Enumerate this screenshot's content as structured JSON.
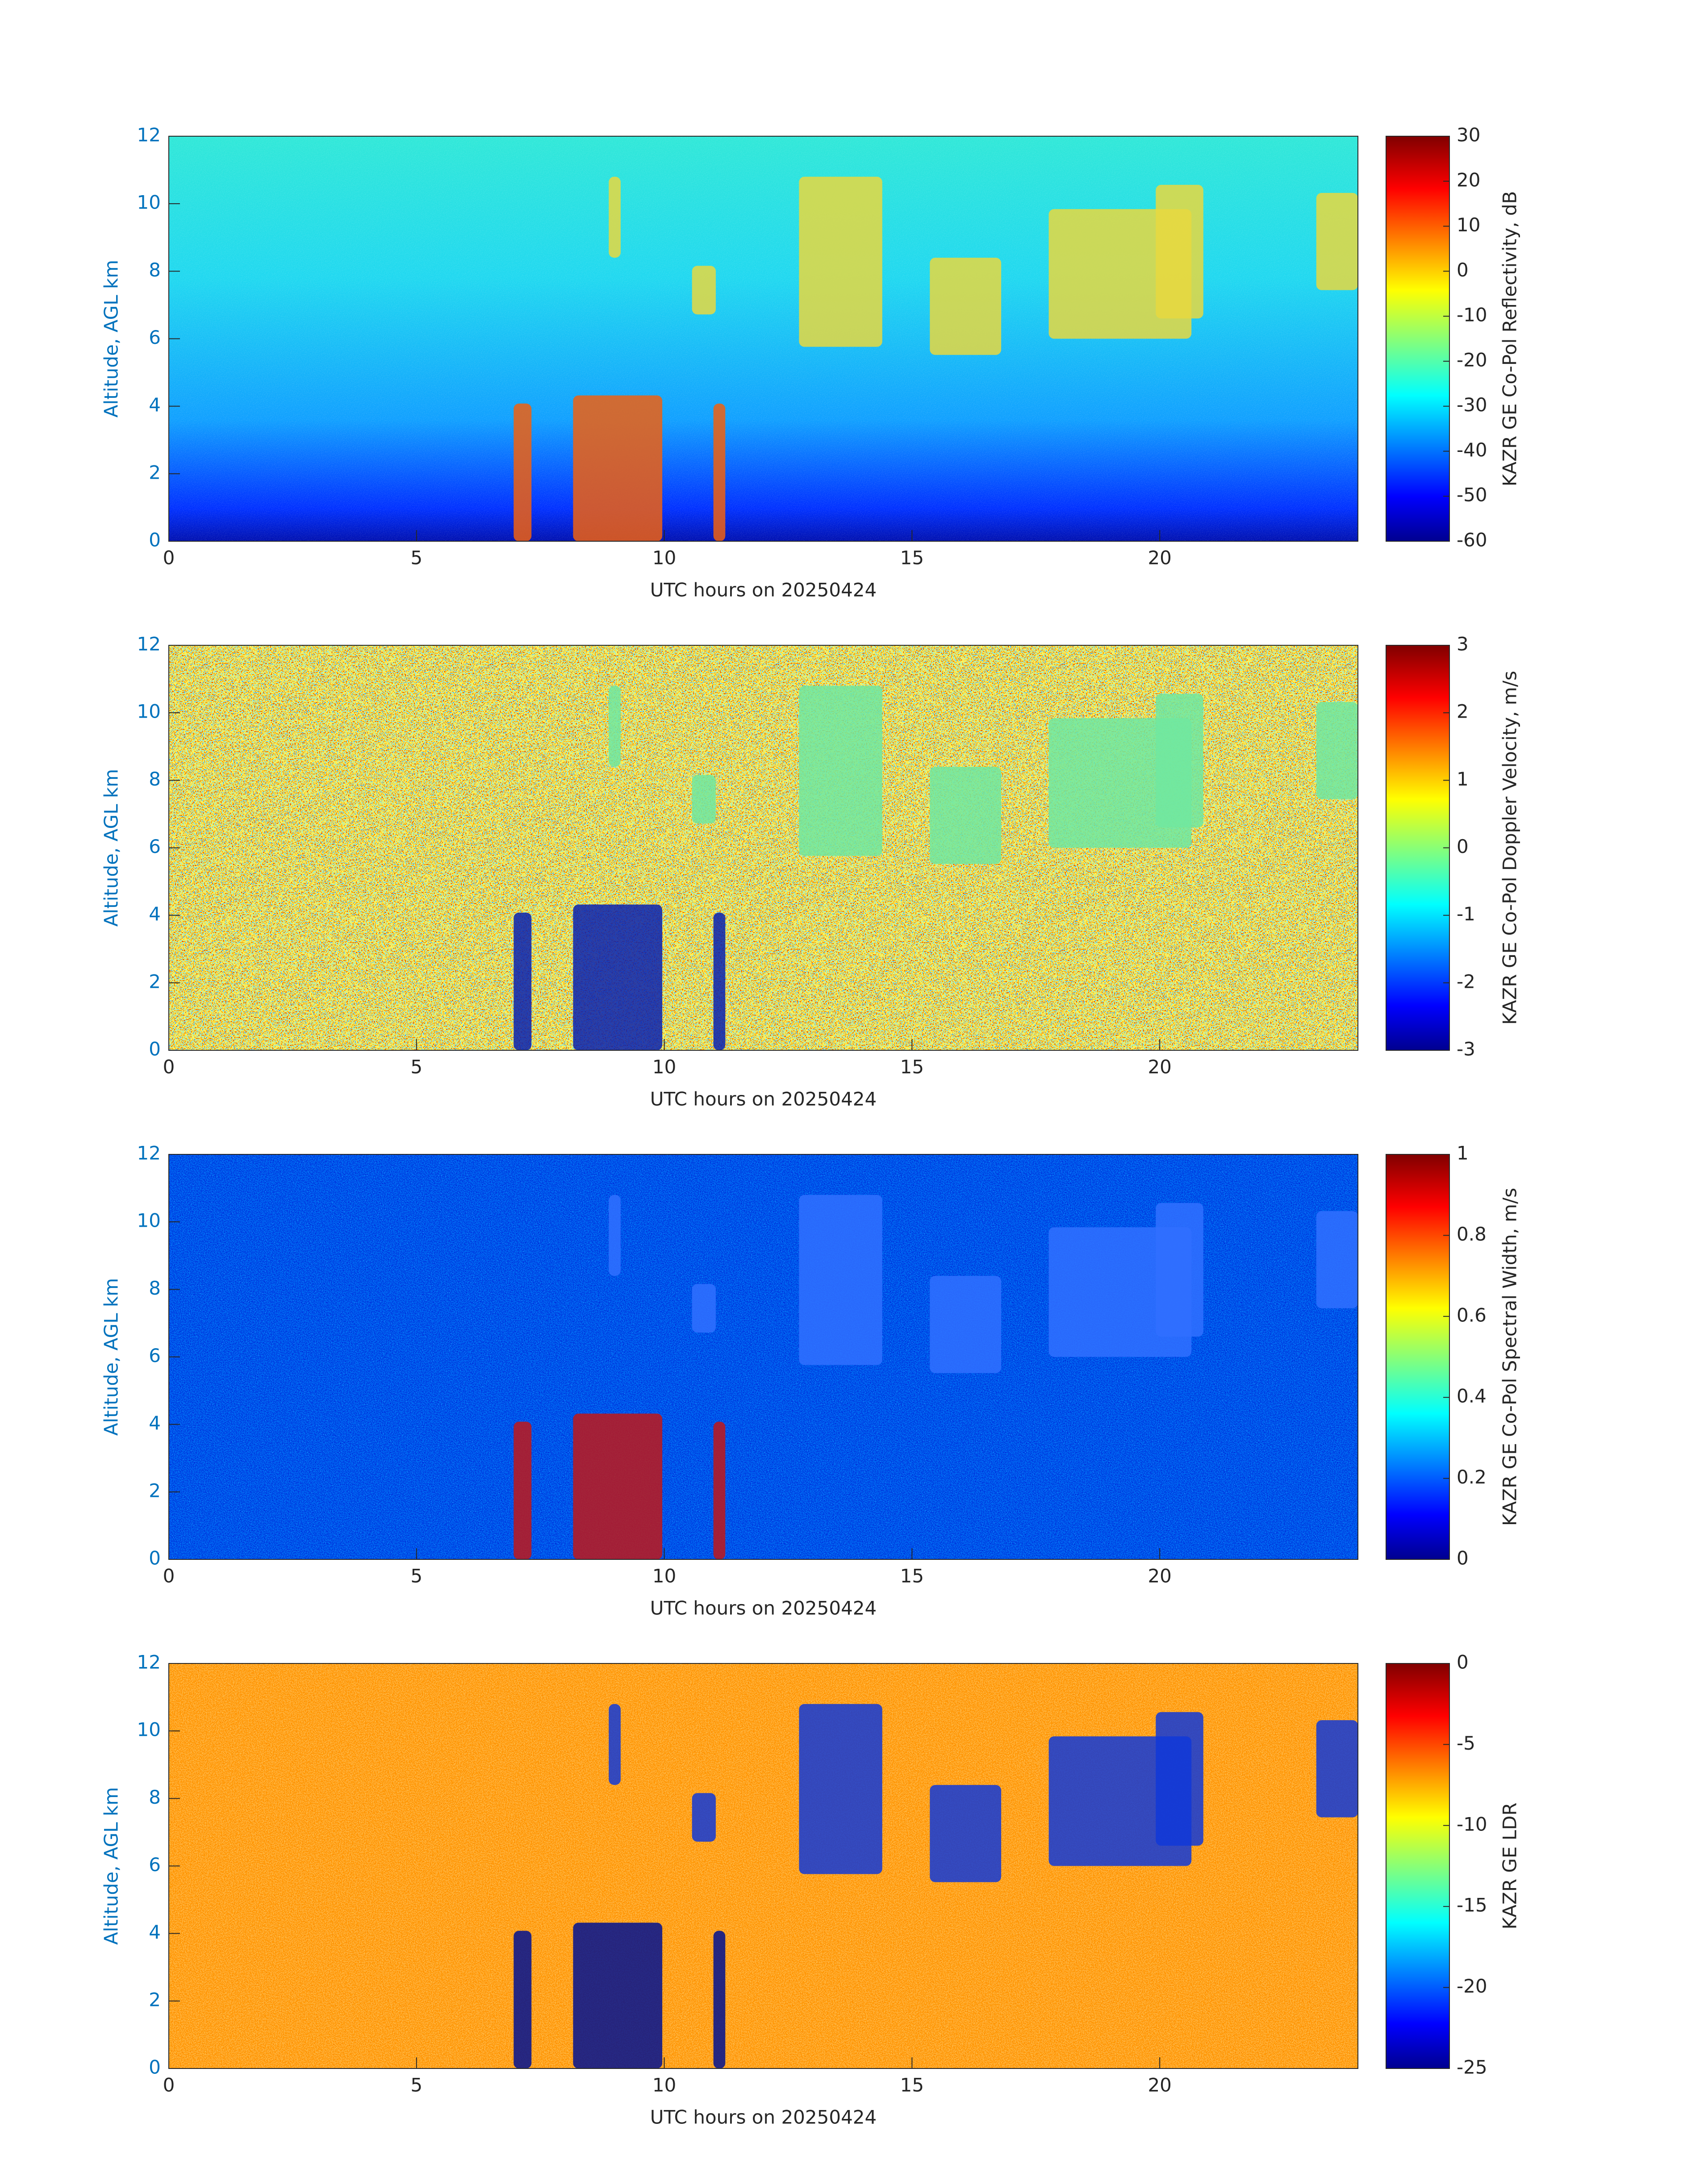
{
  "chart_data": [
    {
      "type": "heatmap",
      "xlabel": "UTC hours on 20250424",
      "ylabel": "Altitude, AGL km",
      "xlim": [
        0,
        24
      ],
      "xticks": [
        0,
        5,
        10,
        15,
        20
      ],
      "ylim": [
        0,
        12
      ],
      "yticks": [
        0,
        2,
        4,
        6,
        8,
        10,
        12
      ],
      "colorbar": {
        "label": "KAZR GE Co-Pol Reflectivity, dB",
        "clim": [
          -60,
          30
        ],
        "cticks": [
          -60,
          -50,
          -40,
          -30,
          -20,
          -10,
          0,
          10,
          20,
          30
        ],
        "colormap": "jet"
      }
    },
    {
      "type": "heatmap",
      "xlabel": "UTC hours on 20250424",
      "ylabel": "Altitude, AGL km",
      "xlim": [
        0,
        24
      ],
      "xticks": [
        0,
        5,
        10,
        15,
        20
      ],
      "ylim": [
        0,
        12
      ],
      "yticks": [
        0,
        2,
        4,
        6,
        8,
        10,
        12
      ],
      "colorbar": {
        "label": "KAZR GE Co-Pol Doppler Velocity, m/s",
        "clim": [
          -3,
          3
        ],
        "cticks": [
          -3,
          -2,
          -1,
          0,
          1,
          2,
          3
        ],
        "colormap": "jet"
      }
    },
    {
      "type": "heatmap",
      "xlabel": "UTC hours on 20250424",
      "ylabel": "Altitude, AGL km",
      "xlim": [
        0,
        24
      ],
      "xticks": [
        0,
        5,
        10,
        15,
        20
      ],
      "ylim": [
        0,
        12
      ],
      "yticks": [
        0,
        2,
        4,
        6,
        8,
        10,
        12
      ],
      "colorbar": {
        "label": "KAZR GE Co-Pol Spectral Width, m/s",
        "clim": [
          0,
          1
        ],
        "cticks": [
          0,
          0.2,
          0.4,
          0.6,
          0.8,
          1
        ],
        "colormap": "jet"
      }
    },
    {
      "type": "heatmap",
      "xlabel": "UTC hours on 20250424",
      "ylabel": "Altitude, AGL km",
      "xlim": [
        0,
        24
      ],
      "xticks": [
        0,
        5,
        10,
        15,
        20
      ],
      "ylim": [
        0,
        12
      ],
      "yticks": [
        0,
        2,
        4,
        6,
        8,
        10,
        12
      ],
      "colorbar": {
        "label": "KAZR GE LDR",
        "clim": [
          -25,
          0
        ],
        "cticks": [
          -25,
          -20,
          -15,
          -10,
          -5,
          0
        ],
        "colormap": "jet"
      }
    }
  ]
}
